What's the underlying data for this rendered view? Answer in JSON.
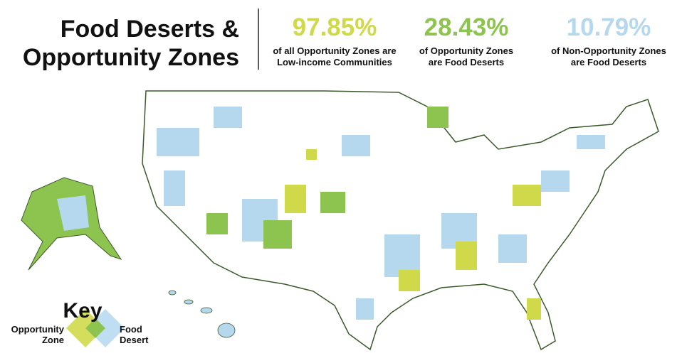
{
  "header": {
    "title": [
      "Food Deserts &",
      "Opportunity Zones"
    ]
  },
  "stats": [
    {
      "value": "97.85%",
      "caption": [
        "of all Opportunity Zones are",
        "Low-income Communities"
      ]
    },
    {
      "value": "28.43%",
      "caption": [
        "of Opportunity Zones",
        "are Food Deserts"
      ]
    },
    {
      "value": "10.79%",
      "caption": [
        "of Non-Opportunity Zones",
        "are Food Deserts"
      ]
    }
  ],
  "key": {
    "title": "Key",
    "opportunity_zone": [
      "Opportunity",
      "Zone"
    ],
    "food_desert": [
      "Food",
      "Desert"
    ]
  }
}
